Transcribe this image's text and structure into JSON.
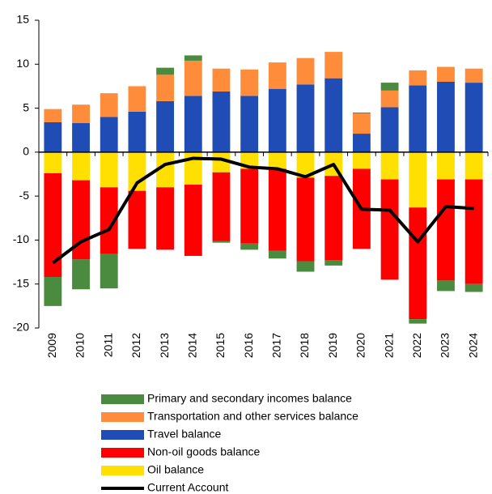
{
  "chart_data": {
    "type": "bar",
    "stacked": true,
    "categories": [
      "2009",
      "2010",
      "2011",
      "2012",
      "2013",
      "2014",
      "2015",
      "2016",
      "2017",
      "2018",
      "2019",
      "2020",
      "2021",
      "2022",
      "2023",
      "2024"
    ],
    "series": [
      {
        "name": "Oil balance",
        "color": "#ffe000",
        "values": [
          -2.4,
          -3.2,
          -4.0,
          -4.4,
          -4.0,
          -3.7,
          -2.3,
          -1.9,
          -1.9,
          -2.9,
          -2.7,
          -1.9,
          -3.1,
          -6.3,
          -3.1,
          -3.1
        ]
      },
      {
        "name": "Non-oil goods balance",
        "color": "#ff0000",
        "values": [
          -11.8,
          -9.0,
          -7.6,
          -6.6,
          -7.1,
          -8.1,
          -7.8,
          -8.5,
          -9.3,
          -9.5,
          -9.6,
          -9.1,
          -11.4,
          -12.7,
          -11.5,
          -11.9
        ]
      },
      {
        "name": "Travel balance",
        "color": "#1f4db5",
        "values": [
          3.4,
          3.3,
          4.0,
          4.6,
          5.8,
          6.4,
          6.9,
          6.4,
          7.2,
          7.7,
          8.4,
          2.1,
          5.1,
          7.6,
          8.0,
          7.9
        ]
      },
      {
        "name": "Transportation and other services balance",
        "color": "#ff8c3a",
        "values": [
          1.5,
          2.1,
          2.7,
          2.9,
          3.0,
          4.0,
          2.6,
          3.0,
          3.0,
          3.0,
          3.0,
          2.3,
          1.9,
          1.7,
          1.7,
          1.6
        ]
      },
      {
        "name": "Primary and secondary incomes balance",
        "color": "#4a8b3f",
        "values": [
          -3.3,
          -3.4,
          -3.9,
          0,
          0.8,
          0.6,
          -0.2,
          -0.7,
          -0.9,
          -1.2,
          -0.6,
          0.1,
          0.9,
          -0.5,
          -1.2,
          -0.9
        ]
      },
      {
        "name": "Current Account",
        "color": "#000000",
        "type": "line",
        "values": [
          -12.6,
          -10.2,
          -8.8,
          -3.5,
          -1.4,
          -0.7,
          -0.8,
          -1.7,
          -1.9,
          -2.8,
          -1.4,
          -6.5,
          -6.6,
          -10.2,
          -6.2,
          -6.4
        ]
      }
    ],
    "legend_order": [
      4,
      3,
      2,
      1,
      0,
      5
    ],
    "ylim": [
      -20,
      15
    ],
    "yticks": [
      -20,
      -15,
      -10,
      -5,
      0,
      5,
      10,
      15
    ]
  }
}
